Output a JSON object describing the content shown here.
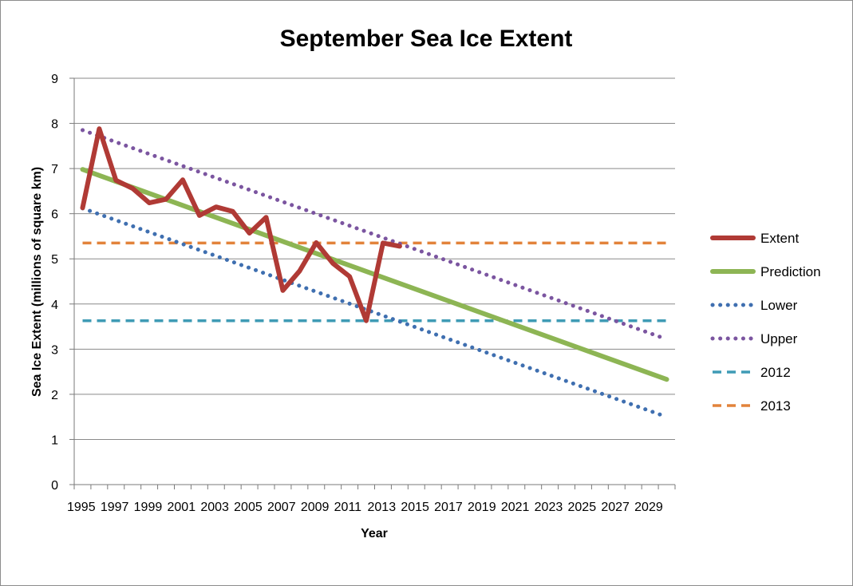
{
  "chart_data": {
    "type": "line",
    "title": "September Sea Ice Extent",
    "xlabel": "Year",
    "ylabel": "Sea Ice Extent (millions of square km)",
    "ylim": [
      0,
      9
    ],
    "yticks": [
      "0",
      "1",
      "2",
      "3",
      "4",
      "5",
      "6",
      "7",
      "8",
      "9"
    ],
    "x_categories": [
      "1995",
      "1996",
      "1997",
      "1998",
      "1999",
      "2000",
      "2001",
      "2002",
      "2003",
      "2004",
      "2005",
      "2006",
      "2007",
      "2008",
      "2009",
      "2010",
      "2011",
      "2012",
      "2013",
      "2014",
      "2015",
      "2016",
      "2017",
      "2018",
      "2019",
      "2020",
      "2021",
      "2022",
      "2023",
      "2024",
      "2025",
      "2026",
      "2027",
      "2028",
      "2029",
      "2030"
    ],
    "x_tick_labels": [
      "1995",
      "1997",
      "1999",
      "2001",
      "2003",
      "2005",
      "2007",
      "2009",
      "2011",
      "2013",
      "2015",
      "2017",
      "2019",
      "2021",
      "2023",
      "2025",
      "2027",
      "2029"
    ],
    "grid": true,
    "legend_position": "right",
    "series": [
      {
        "name": "Extent",
        "color": "#b03a35",
        "style": "solid-thick",
        "x": [
          "1995",
          "1996",
          "1997",
          "1998",
          "1999",
          "2000",
          "2001",
          "2002",
          "2003",
          "2004",
          "2005",
          "2006",
          "2007",
          "2008",
          "2009",
          "2010",
          "2011",
          "2012",
          "2013",
          "2014"
        ],
        "values": [
          6.13,
          7.88,
          6.74,
          6.56,
          6.24,
          6.32,
          6.75,
          5.96,
          6.15,
          6.05,
          5.57,
          5.92,
          4.3,
          4.73,
          5.36,
          4.9,
          4.61,
          3.63,
          5.35,
          5.28
        ]
      },
      {
        "name": "Prediction",
        "color": "#8db554",
        "style": "solid-thick",
        "x_start": "1995",
        "x_end": "2030",
        "values_endpoints": [
          6.98,
          2.33
        ]
      },
      {
        "name": "Lower",
        "color": "#3f6fb0",
        "style": "dotted",
        "x_start": "1995",
        "x_end": "2030",
        "values_endpoints": [
          6.12,
          1.5
        ]
      },
      {
        "name": "Upper",
        "color": "#7b55a0",
        "style": "dotted",
        "x_start": "1995",
        "x_end": "2030",
        "values_endpoints": [
          7.85,
          3.22
        ]
      },
      {
        "name": "2012",
        "color": "#3f9bb5",
        "style": "dashed",
        "x_start": "1995",
        "x_end": "2030",
        "values_endpoints": [
          3.63,
          3.63
        ]
      },
      {
        "name": "2013",
        "color": "#e2833b",
        "style": "dashed",
        "x_start": "1995",
        "x_end": "2030",
        "values_endpoints": [
          5.35,
          5.35
        ]
      }
    ]
  }
}
